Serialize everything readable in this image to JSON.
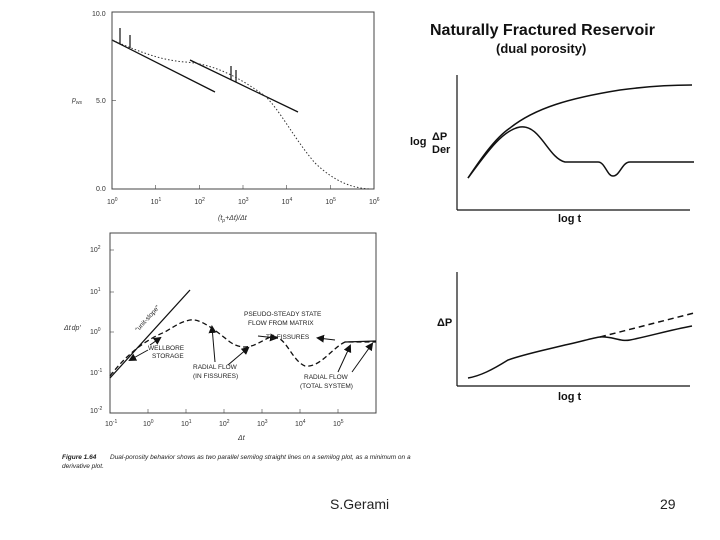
{
  "top_left_plot": {
    "ylabel": "p",
    "ylabel_sub": "ws",
    "xlabel": "(t",
    "xlabel_sub": "p",
    "xlabel_rest": "+Δt)/Δt",
    "y_ticks": [
      "10.0",
      "5.0",
      "0.0"
    ],
    "x_ticks": [
      {
        "base": "10",
        "exp": "0"
      },
      {
        "base": "10",
        "exp": "1"
      },
      {
        "base": "10",
        "exp": "2"
      },
      {
        "base": "10",
        "exp": "3"
      },
      {
        "base": "10",
        "exp": "4"
      },
      {
        "base": "10",
        "exp": "5"
      },
      {
        "base": "10",
        "exp": "6"
      }
    ]
  },
  "bottom_left_plot": {
    "ylabel": "Δt",
    "ylabel_rest": "dp'",
    "xlabel": "Δt",
    "y_ticks": [
      {
        "base": "10",
        "exp": "2"
      },
      {
        "base": "10",
        "exp": "1"
      },
      {
        "base": "10",
        "exp": "0"
      },
      {
        "base": "10",
        "exp": "-1"
      },
      {
        "base": "10",
        "exp": "-2"
      }
    ],
    "x_ticks": [
      {
        "base": "10",
        "exp": "-1"
      },
      {
        "base": "10",
        "exp": "0"
      },
      {
        "base": "10",
        "exp": "1"
      },
      {
        "base": "10",
        "exp": "2"
      },
      {
        "base": "10",
        "exp": "3"
      },
      {
        "base": "10",
        "exp": "4"
      },
      {
        "base": "10",
        "exp": "5"
      }
    ],
    "annotations": {
      "unit_slope": "\"unit-slope\"",
      "wellbore_1": "WELLBORE",
      "wellbore_2": "STORAGE",
      "pseudo_1": "PSEUDO-STEADY STATE",
      "pseudo_2": "FLOW FROM MATRIX",
      "pseudo_3": "TO FISSURES",
      "radial_fissures_1": "RADIAL FLOW",
      "radial_fissures_2": "(IN FISSURES)",
      "radial_total_1": "RADIAL FLOW",
      "radial_total_2": "(TOTAL SYSTEM)"
    }
  },
  "caption": {
    "label": "Figure 1.64",
    "text_line1": "Dual-porosity behavior shows as two parallel semilog straight lines on a semilog plot, as a minimum on a",
    "text_line2": "derivative plot."
  },
  "right_panel": {
    "title_line1": "Naturally Fractured Reservoir",
    "title_line2": "(dual porosity)",
    "top_ylabel_log": "log",
    "top_ylabel_dp": "ΔP",
    "top_ylabel_der": "Der",
    "top_xlabel": "log t",
    "bottom_ylabel": "ΔP",
    "bottom_xlabel": "log t"
  },
  "footer": {
    "author": "S.Gerami",
    "page_number": "29"
  }
}
